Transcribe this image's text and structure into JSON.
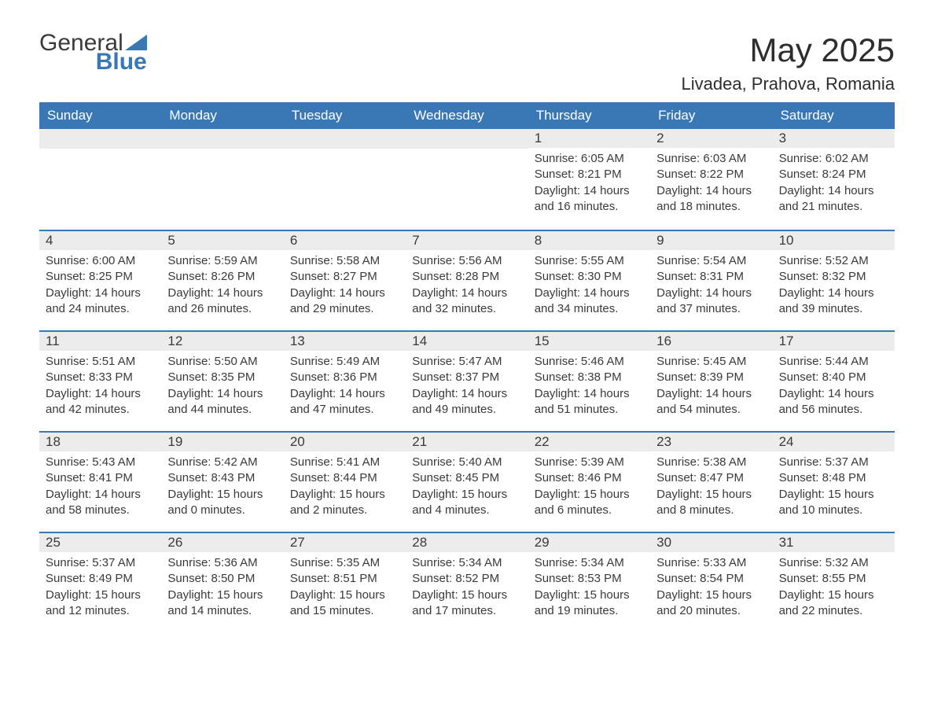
{
  "logo": {
    "text1": "General",
    "text2": "Blue"
  },
  "title": "May 2025",
  "location": "Livadea, Prahova, Romania",
  "colors": {
    "header_bg": "#3a78b5",
    "header_text": "#ffffff",
    "daynum_bg": "#ececec",
    "body_text": "#3a3a3a",
    "row_border": "#3a78b5",
    "page_bg": "#ffffff"
  },
  "weekdays": [
    "Sunday",
    "Monday",
    "Tuesday",
    "Wednesday",
    "Thursday",
    "Friday",
    "Saturday"
  ],
  "weeks": [
    [
      null,
      null,
      null,
      null,
      {
        "n": "1",
        "sr": "Sunrise: 6:05 AM",
        "ss": "Sunset: 8:21 PM",
        "dl": "Daylight: 14 hours and 16 minutes."
      },
      {
        "n": "2",
        "sr": "Sunrise: 6:03 AM",
        "ss": "Sunset: 8:22 PM",
        "dl": "Daylight: 14 hours and 18 minutes."
      },
      {
        "n": "3",
        "sr": "Sunrise: 6:02 AM",
        "ss": "Sunset: 8:24 PM",
        "dl": "Daylight: 14 hours and 21 minutes."
      }
    ],
    [
      {
        "n": "4",
        "sr": "Sunrise: 6:00 AM",
        "ss": "Sunset: 8:25 PM",
        "dl": "Daylight: 14 hours and 24 minutes."
      },
      {
        "n": "5",
        "sr": "Sunrise: 5:59 AM",
        "ss": "Sunset: 8:26 PM",
        "dl": "Daylight: 14 hours and 26 minutes."
      },
      {
        "n": "6",
        "sr": "Sunrise: 5:58 AM",
        "ss": "Sunset: 8:27 PM",
        "dl": "Daylight: 14 hours and 29 minutes."
      },
      {
        "n": "7",
        "sr": "Sunrise: 5:56 AM",
        "ss": "Sunset: 8:28 PM",
        "dl": "Daylight: 14 hours and 32 minutes."
      },
      {
        "n": "8",
        "sr": "Sunrise: 5:55 AM",
        "ss": "Sunset: 8:30 PM",
        "dl": "Daylight: 14 hours and 34 minutes."
      },
      {
        "n": "9",
        "sr": "Sunrise: 5:54 AM",
        "ss": "Sunset: 8:31 PM",
        "dl": "Daylight: 14 hours and 37 minutes."
      },
      {
        "n": "10",
        "sr": "Sunrise: 5:52 AM",
        "ss": "Sunset: 8:32 PM",
        "dl": "Daylight: 14 hours and 39 minutes."
      }
    ],
    [
      {
        "n": "11",
        "sr": "Sunrise: 5:51 AM",
        "ss": "Sunset: 8:33 PM",
        "dl": "Daylight: 14 hours and 42 minutes."
      },
      {
        "n": "12",
        "sr": "Sunrise: 5:50 AM",
        "ss": "Sunset: 8:35 PM",
        "dl": "Daylight: 14 hours and 44 minutes."
      },
      {
        "n": "13",
        "sr": "Sunrise: 5:49 AM",
        "ss": "Sunset: 8:36 PM",
        "dl": "Daylight: 14 hours and 47 minutes."
      },
      {
        "n": "14",
        "sr": "Sunrise: 5:47 AM",
        "ss": "Sunset: 8:37 PM",
        "dl": "Daylight: 14 hours and 49 minutes."
      },
      {
        "n": "15",
        "sr": "Sunrise: 5:46 AM",
        "ss": "Sunset: 8:38 PM",
        "dl": "Daylight: 14 hours and 51 minutes."
      },
      {
        "n": "16",
        "sr": "Sunrise: 5:45 AM",
        "ss": "Sunset: 8:39 PM",
        "dl": "Daylight: 14 hours and 54 minutes."
      },
      {
        "n": "17",
        "sr": "Sunrise: 5:44 AM",
        "ss": "Sunset: 8:40 PM",
        "dl": "Daylight: 14 hours and 56 minutes."
      }
    ],
    [
      {
        "n": "18",
        "sr": "Sunrise: 5:43 AM",
        "ss": "Sunset: 8:41 PM",
        "dl": "Daylight: 14 hours and 58 minutes."
      },
      {
        "n": "19",
        "sr": "Sunrise: 5:42 AM",
        "ss": "Sunset: 8:43 PM",
        "dl": "Daylight: 15 hours and 0 minutes."
      },
      {
        "n": "20",
        "sr": "Sunrise: 5:41 AM",
        "ss": "Sunset: 8:44 PM",
        "dl": "Daylight: 15 hours and 2 minutes."
      },
      {
        "n": "21",
        "sr": "Sunrise: 5:40 AM",
        "ss": "Sunset: 8:45 PM",
        "dl": "Daylight: 15 hours and 4 minutes."
      },
      {
        "n": "22",
        "sr": "Sunrise: 5:39 AM",
        "ss": "Sunset: 8:46 PM",
        "dl": "Daylight: 15 hours and 6 minutes."
      },
      {
        "n": "23",
        "sr": "Sunrise: 5:38 AM",
        "ss": "Sunset: 8:47 PM",
        "dl": "Daylight: 15 hours and 8 minutes."
      },
      {
        "n": "24",
        "sr": "Sunrise: 5:37 AM",
        "ss": "Sunset: 8:48 PM",
        "dl": "Daylight: 15 hours and 10 minutes."
      }
    ],
    [
      {
        "n": "25",
        "sr": "Sunrise: 5:37 AM",
        "ss": "Sunset: 8:49 PM",
        "dl": "Daylight: 15 hours and 12 minutes."
      },
      {
        "n": "26",
        "sr": "Sunrise: 5:36 AM",
        "ss": "Sunset: 8:50 PM",
        "dl": "Daylight: 15 hours and 14 minutes."
      },
      {
        "n": "27",
        "sr": "Sunrise: 5:35 AM",
        "ss": "Sunset: 8:51 PM",
        "dl": "Daylight: 15 hours and 15 minutes."
      },
      {
        "n": "28",
        "sr": "Sunrise: 5:34 AM",
        "ss": "Sunset: 8:52 PM",
        "dl": "Daylight: 15 hours and 17 minutes."
      },
      {
        "n": "29",
        "sr": "Sunrise: 5:34 AM",
        "ss": "Sunset: 8:53 PM",
        "dl": "Daylight: 15 hours and 19 minutes."
      },
      {
        "n": "30",
        "sr": "Sunrise: 5:33 AM",
        "ss": "Sunset: 8:54 PM",
        "dl": "Daylight: 15 hours and 20 minutes."
      },
      {
        "n": "31",
        "sr": "Sunrise: 5:32 AM",
        "ss": "Sunset: 8:55 PM",
        "dl": "Daylight: 15 hours and 22 minutes."
      }
    ]
  ]
}
